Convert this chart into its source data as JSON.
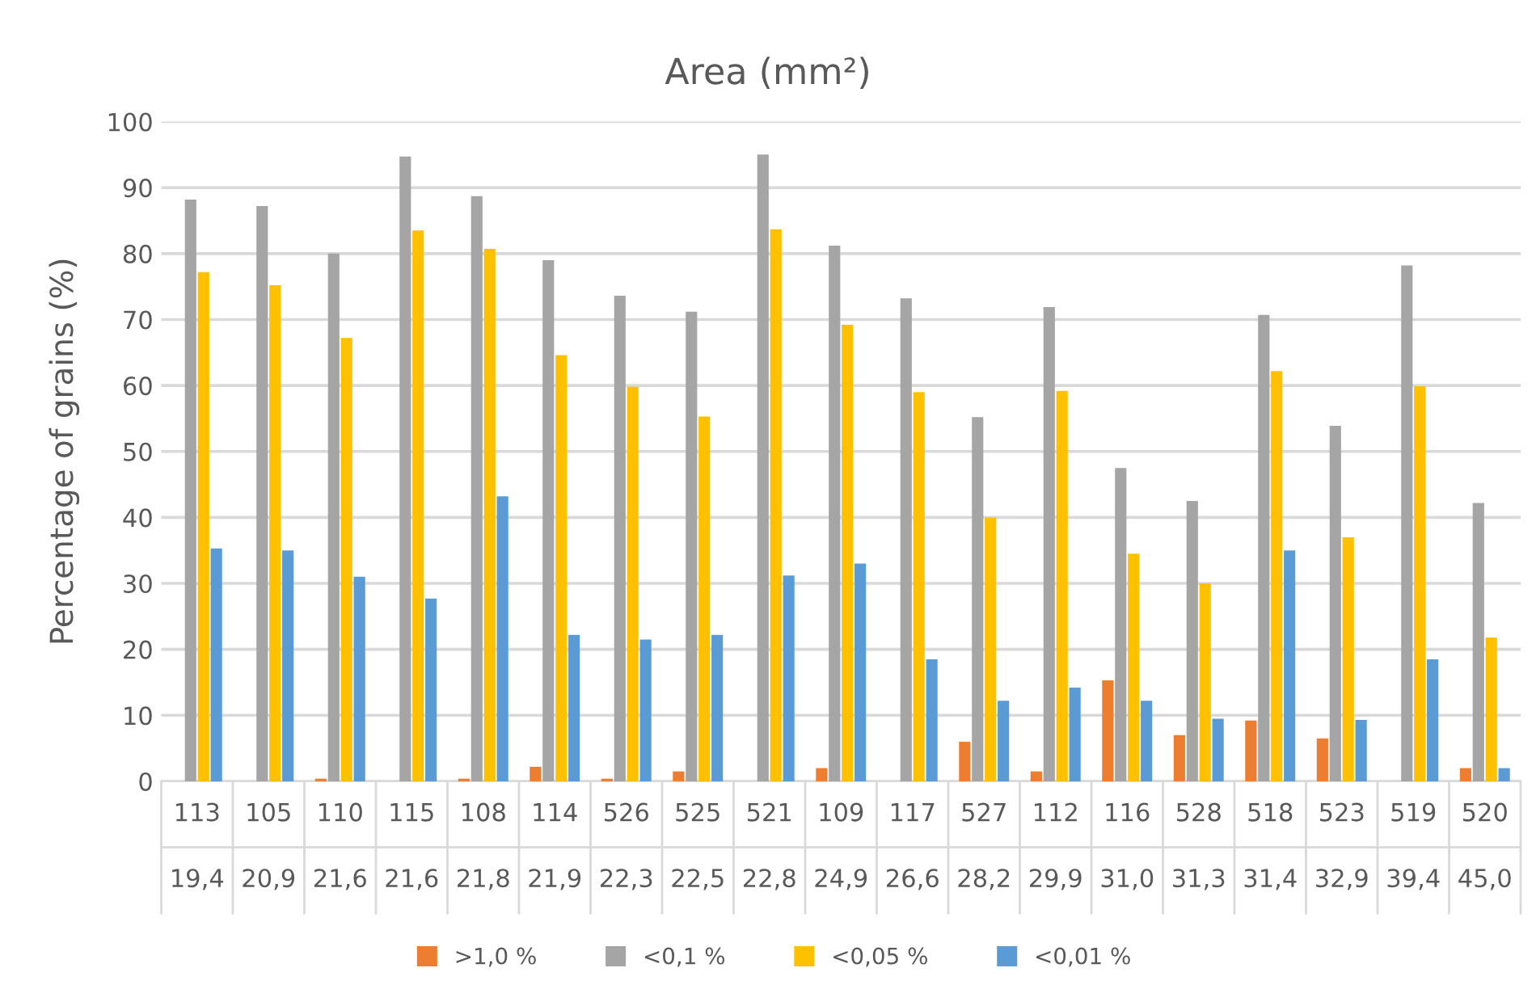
{
  "chart_data": {
    "type": "bar",
    "title": "Area (mm²)",
    "ylabel": "Percentage of grains (%)",
    "categories": [
      "113\n19,4",
      "105\n20,9",
      "110\n21,6",
      "115\n21,6",
      "108\n21,8",
      "114\n21,9",
      "526\n22,3",
      "525\n22,5",
      "521\n22,8",
      "109\n24,9",
      "117\n26,6",
      "527\n28,2",
      "112\n29,9",
      "116\n31,0",
      "528\n31,3",
      "518\n31,4",
      "523\n32,9",
      "519\n39,4",
      "520\n45,0"
    ],
    "series": [
      {
        "name": ">1,0 %",
        "color": "#ed7d31",
        "values": [
          0,
          0,
          0.4,
          0,
          0.4,
          2.2,
          0.4,
          1.5,
          0,
          2,
          0,
          6,
          1.5,
          15.3,
          7,
          9.2,
          6.5,
          0,
          2
        ]
      },
      {
        "name": "<0,1 %",
        "color": "#a5a5a5",
        "values": [
          88.2,
          87.2,
          80,
          94.7,
          88.7,
          79,
          73.6,
          71.2,
          95,
          81.2,
          73.2,
          55.2,
          71.9,
          47.5,
          42.5,
          70.7,
          53.9,
          78.2,
          42.2
        ]
      },
      {
        "name": "<0,05 %",
        "color": "#ffc000",
        "values": [
          77.2,
          75.2,
          67.2,
          83.5,
          80.7,
          64.6,
          59.8,
          55.3,
          83.7,
          69.2,
          59,
          40,
          59.2,
          34.5,
          30,
          62.2,
          37,
          59.9,
          21.8
        ]
      },
      {
        "name": "<0,01 %",
        "color": "#5b9bd5",
        "values": [
          35.3,
          35,
          31,
          27.7,
          43.2,
          22.2,
          21.5,
          22.2,
          31.2,
          33,
          18.5,
          12.2,
          14.2,
          12.2,
          9.5,
          35,
          9.3,
          18.5,
          2
        ]
      }
    ],
    "ylim": [
      0,
      100
    ],
    "yticks": [
      0,
      10,
      20,
      30,
      40,
      50,
      60,
      70,
      80,
      90,
      100
    ],
    "grid": "y",
    "legend": "bottom"
  }
}
